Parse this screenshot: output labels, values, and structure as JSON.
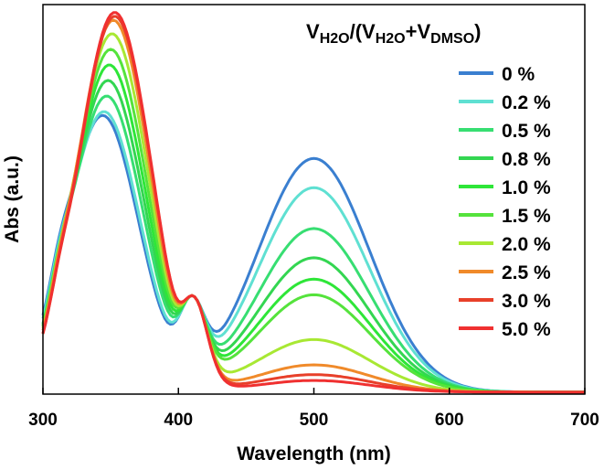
{
  "chart_data": {
    "type": "line",
    "title": "",
    "xlabel": "Wavelength (nm)",
    "ylabel": "Abs (a.u.)",
    "xlim": [
      300,
      700
    ],
    "ylim": [
      0,
      1.0
    ],
    "x_ticks": [
      300,
      400,
      500,
      600,
      700
    ],
    "x_tick_labels": [
      "300",
      "400",
      "500",
      "600",
      "700"
    ],
    "y_ticks_shown": false,
    "grid": false,
    "legend_position": "top-right",
    "legend_title": {
      "v1": "V",
      "h2o_sub_1": "H2O",
      "sep": "/(V",
      "h2o_sub_2": "H2O",
      "plus": "+V",
      "dmso_sub": "DMSO",
      "close": ")"
    },
    "isosbestic_point": {
      "x": 410,
      "y": 0.248
    },
    "series": [
      {
        "name": "0 %",
        "color": "#3a7fd0",
        "sh": 0.71,
        "px": 344,
        "sl": 0.5,
        "sr": 0.45,
        "vh": 0.6
      },
      {
        "name": "0.2 %",
        "color": "#5fe0d2",
        "sh": 0.72,
        "px": 345,
        "sl": 0.5,
        "sr": 0.45,
        "vh": 0.525
      },
      {
        "name": "0.5 %",
        "color": "#37de72",
        "sh": 0.76,
        "px": 347,
        "sl": 0.5,
        "sr": 0.45,
        "vh": 0.42
      },
      {
        "name": "0.8 %",
        "color": "#33d651",
        "sh": 0.8,
        "px": 348,
        "sl": 0.5,
        "sr": 0.45,
        "vh": 0.345
      },
      {
        "name": "1.0 %",
        "color": "#2ee638",
        "sh": 0.84,
        "px": 349,
        "sl": 0.5,
        "sr": 0.45,
        "vh": 0.29
      },
      {
        "name": "1.5 %",
        "color": "#55e33c",
        "sh": 0.88,
        "px": 350,
        "sl": 0.5,
        "sr": 0.45,
        "vh": 0.25
      },
      {
        "name": "2.0 %",
        "color": "#a8e833",
        "sh": 0.92,
        "px": 351,
        "sl": 0.5,
        "sr": 0.45,
        "vh": 0.135
      },
      {
        "name": "2.5 %",
        "color": "#f08a2a",
        "sh": 0.955,
        "px": 352,
        "sl": 0.5,
        "sr": 0.45,
        "vh": 0.07
      },
      {
        "name": "3.0 %",
        "color": "#e8402a",
        "sh": 0.965,
        "px": 353,
        "sl": 0.5,
        "sr": 0.45,
        "vh": 0.045
      },
      {
        "name": "5.0 %",
        "color": "#f03030",
        "sh": 0.975,
        "px": 353,
        "sl": 0.5,
        "sr": 0.45,
        "vh": 0.03
      }
    ]
  }
}
